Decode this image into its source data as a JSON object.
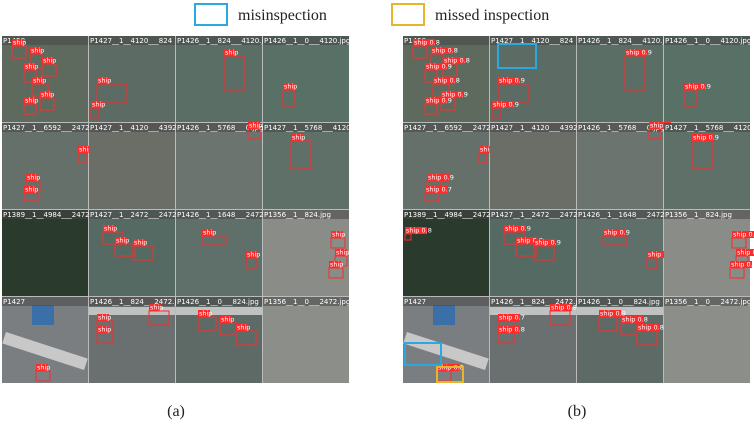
{
  "legend": [
    {
      "label": "misinspection"
    },
    {
      "label": "missed inspection"
    }
  ],
  "panels": [
    {
      "label": "(a)",
      "tiles": [
        {
          "title": "P1428",
          "detections": [
            "ship",
            "ship",
            "ship",
            "ship",
            "ship",
            "ship",
            "ship"
          ]
        },
        {
          "title": "P1427__1__4120___824",
          "detections": [
            "ship",
            "ship"
          ]
        },
        {
          "title": "P1426__1__824___4120.jpg",
          "detections": [
            "ship"
          ]
        },
        {
          "title": "P1426__1__0___4120.jpg",
          "detections": [
            "ship"
          ]
        },
        {
          "title": "P1427__1__6592___2472.jpg",
          "detections": [
            "ship",
            "ship",
            "ship"
          ]
        },
        {
          "title": "P1427__1__4120___4392",
          "detections": []
        },
        {
          "title": "P1426__1__5768___0.jpg",
          "detections": [
            "ship"
          ]
        },
        {
          "title": "P1427__1__5768___4120.jpg",
          "detections": [
            "ship"
          ]
        },
        {
          "title": "P1389__1__4984___2472.jpg",
          "detections": []
        },
        {
          "title": "P1427__1__2472___2472.jpg",
          "detections": [
            "ship",
            "ship",
            "ship"
          ]
        },
        {
          "title": "P1426__1__1648___2472.jpg",
          "detections": [
            "ship",
            "ship"
          ]
        },
        {
          "title": "P1356__1__824.jpg",
          "detections": [
            "ship",
            "ship",
            "ship"
          ]
        },
        {
          "title": "P1427",
          "detections": [
            "ship"
          ]
        },
        {
          "title": "P1426__1__824___2472.jpg",
          "detections": [
            "ship",
            "ship",
            "ship"
          ]
        },
        {
          "title": "P1426__1__0___824.jpg",
          "detections": [
            "ship",
            "ship",
            "ship"
          ]
        },
        {
          "title": "P1356__1__0___2472.jpg",
          "detections": []
        }
      ]
    },
    {
      "label": "(b)",
      "tiles": [
        {
          "title": "P1428",
          "detections": [
            "ship 0.8",
            "ship 0.8",
            "ship 0.8",
            "ship 0.9",
            "ship 0.8",
            "ship 0.9",
            "ship 0.9"
          ]
        },
        {
          "title": "P1427__1__4120___824",
          "detections": [
            "ship 0.9",
            "ship 0.9"
          ]
        },
        {
          "title": "P1426__1__824___4120.jpg",
          "detections": [
            "ship 0.9"
          ]
        },
        {
          "title": "P1426__1__0___4120.jpg",
          "detections": [
            "ship 0.9"
          ]
        },
        {
          "title": "P1427__1__6592___2472.jpg",
          "detections": [
            "ship 0.9",
            "ship 0.7",
            "ship 0.8"
          ]
        },
        {
          "title": "P1427__1__4120___4392",
          "detections": []
        },
        {
          "title": "P1426__1__5768___0.jpg",
          "detections": [
            "ship 0.7"
          ]
        },
        {
          "title": "P1427__1__5768___4120.jpg",
          "detections": [
            "ship 0.9"
          ]
        },
        {
          "title": "P1389__1__4984___2472.jpg",
          "detections": [
            "ship 0.8"
          ]
        },
        {
          "title": "P1427__1__2472___2472.jpg",
          "detections": [
            "ship 0.9",
            "ship 0.7",
            "ship 0.9"
          ]
        },
        {
          "title": "P1426__1__1648___2472.jpg",
          "detections": [
            "ship 0.9",
            "ship 0.8"
          ]
        },
        {
          "title": "P1356__1__824.jpg",
          "detections": [
            "ship 0.8",
            "ship 0.8",
            "ship 0.8"
          ]
        },
        {
          "title": "P1427",
          "detections": [
            "ship 0.8"
          ]
        },
        {
          "title": "P1426__1__824___2472.jpg",
          "detections": [
            "ship 0.7",
            "ship 0.8",
            "ship 0.8"
          ]
        },
        {
          "title": "P1426__1__0___824.jpg",
          "detections": [
            "ship 0.9",
            "ship 0.8",
            "ship 0.8"
          ]
        },
        {
          "title": "P1356__1__0___2472.jpg",
          "detections": []
        }
      ]
    }
  ]
}
